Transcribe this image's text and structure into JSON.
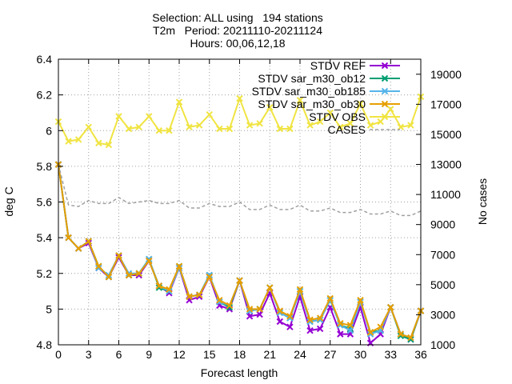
{
  "chart_data": {
    "type": "line",
    "title": [
      "Selection: ALL using   194 stations",
      "T2m   Period: 20211110-20211124",
      "Hours: 00,06,12,18"
    ],
    "xlabel": "Forecast length",
    "ylabel": "deg C",
    "y2label": "No cases",
    "xlim": [
      0,
      36
    ],
    "ylim": [
      4.8,
      6.4
    ],
    "y2lim": [
      1000,
      20000
    ],
    "x_ticks": [
      0,
      3,
      6,
      9,
      12,
      15,
      18,
      21,
      24,
      27,
      30,
      33,
      36
    ],
    "y_ticks": [
      4.8,
      5.0,
      5.2,
      5.4,
      5.6,
      5.8,
      6.0,
      6.2,
      6.4
    ],
    "y_tick_labels": [
      "4.8",
      "5",
      "5.2",
      "5.4",
      "5.6",
      "5.8",
      "6",
      "6.2",
      "6.4"
    ],
    "y2_ticks": [
      1000,
      3000,
      5000,
      7000,
      9000,
      11000,
      13000,
      15000,
      17000,
      19000
    ],
    "grid": true,
    "legend_position": "top-right",
    "x": [
      0,
      1,
      2,
      3,
      4,
      5,
      6,
      7,
      8,
      9,
      10,
      11,
      12,
      13,
      14,
      15,
      16,
      17,
      18,
      19,
      20,
      21,
      22,
      23,
      24,
      25,
      26,
      27,
      28,
      29,
      30,
      31,
      32,
      33,
      34,
      35,
      36
    ],
    "series": [
      {
        "name": "STDV REF",
        "color": "#9400d3",
        "marker": "x",
        "axis": "y",
        "values": [
          5.81,
          5.4,
          5.34,
          5.37,
          5.23,
          5.18,
          5.29,
          5.19,
          5.19,
          5.27,
          5.13,
          5.09,
          5.23,
          5.05,
          5.07,
          5.18,
          5.02,
          5.0,
          5.16,
          4.96,
          4.97,
          5.09,
          4.93,
          4.9,
          5.07,
          4.88,
          4.89,
          5.01,
          4.86,
          4.86,
          5.01,
          4.81,
          4.86,
          5.01,
          4.86,
          4.83,
          4.99
        ]
      },
      {
        "name": "STDV sar_m30_ob12",
        "color": "#009e73",
        "marker": "x",
        "axis": "y",
        "values": [
          5.81,
          5.4,
          5.34,
          5.38,
          5.24,
          5.18,
          5.3,
          5.19,
          5.2,
          5.28,
          5.12,
          5.1,
          5.24,
          5.07,
          5.08,
          5.19,
          5.04,
          5.01,
          5.16,
          4.99,
          5.0,
          5.12,
          4.98,
          4.95,
          5.1,
          4.93,
          4.94,
          5.05,
          4.91,
          4.89,
          5.04,
          4.87,
          4.88,
          5.01,
          4.85,
          4.83,
          4.99
        ]
      },
      {
        "name": "STDV sar_m30_ob185",
        "color": "#56b4e9",
        "marker": "x",
        "axis": "y",
        "values": [
          5.81,
          5.4,
          5.34,
          5.38,
          5.23,
          5.19,
          5.3,
          5.2,
          5.2,
          5.28,
          5.13,
          5.1,
          5.23,
          5.07,
          5.08,
          5.19,
          5.04,
          5.02,
          5.16,
          4.99,
          5.0,
          5.12,
          4.98,
          4.95,
          5.1,
          4.93,
          4.94,
          5.05,
          4.91,
          4.88,
          5.04,
          4.86,
          4.88,
          5.01,
          4.86,
          4.84,
          4.99
        ]
      },
      {
        "name": "STDV sar_m30_ob30",
        "color": "#e69f00",
        "marker": "x",
        "axis": "y",
        "values": [
          5.81,
          5.4,
          5.34,
          5.38,
          5.24,
          5.18,
          5.3,
          5.19,
          5.2,
          5.27,
          5.13,
          5.11,
          5.24,
          5.07,
          5.08,
          5.18,
          5.05,
          5.02,
          5.16,
          5.0,
          5.0,
          5.12,
          4.99,
          4.96,
          5.11,
          4.94,
          4.95,
          5.06,
          4.92,
          4.91,
          5.05,
          4.87,
          4.9,
          5.01,
          4.86,
          4.84,
          4.99
        ]
      },
      {
        "name": "STDV OBS",
        "color": "#f0e442",
        "marker": "x",
        "axis": "y",
        "values": [
          6.05,
          5.94,
          5.95,
          6.02,
          5.93,
          5.92,
          6.08,
          6.01,
          6.02,
          6.08,
          6.0,
          6.0,
          6.16,
          6.02,
          6.03,
          6.09,
          6.01,
          6.01,
          6.18,
          6.03,
          6.04,
          6.13,
          6.01,
          6.01,
          6.17,
          6.03,
          6.05,
          6.1,
          6.02,
          6.04,
          6.15,
          6.03,
          6.05,
          6.12,
          6.02,
          6.03,
          6.19
        ]
      },
      {
        "name": "CASES",
        "color": "#a0a0a0",
        "marker": "",
        "axis": "y2",
        "dashed": true,
        "values": [
          13000,
          10300,
          10200,
          10600,
          10400,
          10400,
          10800,
          10400,
          10500,
          10600,
          10400,
          10400,
          10600,
          10100,
          10100,
          10400,
          10200,
          10200,
          10500,
          10000,
          10000,
          10300,
          10000,
          10000,
          10300,
          9900,
          9900,
          10100,
          9800,
          9800,
          10000,
          9700,
          9700,
          9900,
          9600,
          9600,
          9900
        ]
      }
    ]
  }
}
